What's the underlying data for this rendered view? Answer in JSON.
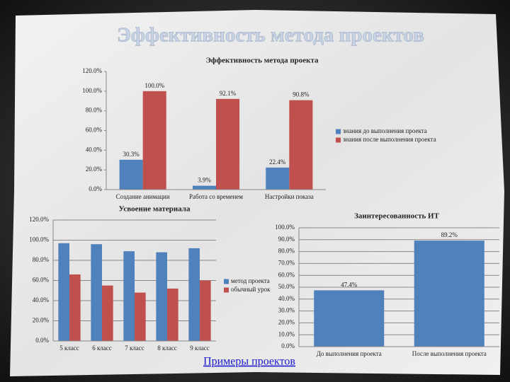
{
  "slide_title": "Эффективность метода проектов",
  "link": "Примеры проектов",
  "chart_data": [
    {
      "type": "bar",
      "title": "Эффективность метода проекта",
      "categories": [
        "Создание анимации",
        "Работа со временем",
        "Настройки показа"
      ],
      "series": [
        {
          "name": "знания до выполнения проекта",
          "color": "#4f81bd",
          "values": [
            30.3,
            3.9,
            22.4
          ],
          "value_labels": [
            "30.3%",
            "3.9%",
            "22.4%"
          ]
        },
        {
          "name": "знания после выполнения проекта",
          "color": "#c0504d",
          "values": [
            100,
            92.1,
            90.8
          ],
          "value_labels": [
            "100.0%",
            "92.1%",
            "90.8%"
          ]
        }
      ],
      "ylim": [
        0,
        120
      ],
      "yticks": [
        {
          "value": 0,
          "label": "0.0%"
        },
        {
          "value": 20,
          "label": "20.0%"
        },
        {
          "value": 40,
          "label": "40.0%"
        },
        {
          "value": 60,
          "label": "60.0%"
        },
        {
          "value": 80,
          "label": "80.0%"
        },
        {
          "value": 100,
          "label": "100.0%"
        },
        {
          "value": 120,
          "label": "120.0%"
        }
      ],
      "grid": false
    },
    {
      "type": "bar",
      "title": "Усвоение материала",
      "categories": [
        "5 класс",
        "6 класс",
        "7 класс",
        "8 класс",
        "9 класс"
      ],
      "series": [
        {
          "name": "метод проекта",
          "color": "#4f81bd",
          "values": [
            97,
            96,
            89,
            88,
            92
          ]
        },
        {
          "name": "обычный урок",
          "color": "#c0504d",
          "values": [
            66,
            55,
            48,
            52,
            60
          ]
        }
      ],
      "ylim": [
        0,
        120
      ],
      "yticks": [
        {
          "value": 0,
          "label": "0.0%"
        },
        {
          "value": 20,
          "label": "20.0%"
        },
        {
          "value": 40,
          "label": "40.0%"
        },
        {
          "value": 60,
          "label": "60.0%"
        },
        {
          "value": 80,
          "label": "80.0%"
        },
        {
          "value": 100,
          "label": "100.0%"
        },
        {
          "value": 120,
          "label": "120.0%"
        }
      ],
      "grid": true
    },
    {
      "type": "bar",
      "title": "Заинтересованность ИТ",
      "categories": [
        "До выполнения проекта",
        "После выполнения проекта"
      ],
      "series": [
        {
          "color": "#4f81bd",
          "values": [
            47.4,
            89.2
          ],
          "value_labels": [
            "47.4%",
            "89.2%"
          ]
        }
      ],
      "ylim": [
        0,
        100
      ],
      "yticks": [
        {
          "value": 0,
          "label": "0.0%"
        },
        {
          "value": 10,
          "label": "10.0%"
        },
        {
          "value": 20,
          "label": "20.0%"
        },
        {
          "value": 30,
          "label": "30.0%"
        },
        {
          "value": 40,
          "label": "40.0%"
        },
        {
          "value": 50,
          "label": "50.0%"
        },
        {
          "value": 60,
          "label": "60.0%"
        },
        {
          "value": 70,
          "label": "70.0%"
        },
        {
          "value": 80,
          "label": "80.0%"
        },
        {
          "value": 90,
          "label": "90.0%"
        },
        {
          "value": 100,
          "label": "100.0%"
        }
      ],
      "grid": true
    }
  ]
}
